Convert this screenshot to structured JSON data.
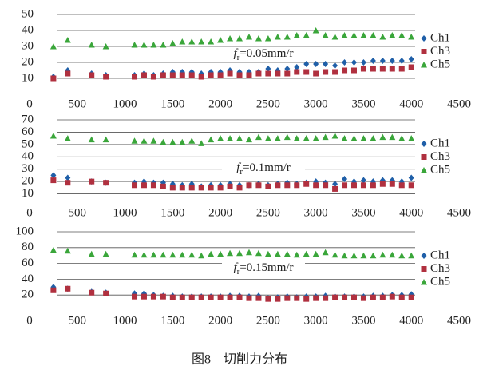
{
  "caption": "图8　切削力分布",
  "chart_data": [
    {
      "type": "scatter",
      "annotation": [
        "f",
        "r",
        "=0.05mm/r"
      ],
      "x": [
        250,
        400,
        650,
        800,
        1100,
        1200,
        1300,
        1400,
        1500,
        1600,
        1700,
        1800,
        1900,
        2000,
        2100,
        2200,
        2300,
        2400,
        2500,
        2600,
        2700,
        2800,
        2900,
        3000,
        3100,
        3200,
        3300,
        3400,
        3500,
        3600,
        3700,
        3800,
        3900,
        4000
      ],
      "xlim": [
        0,
        4500
      ],
      "xticks": [
        0,
        500,
        1000,
        1500,
        2000,
        2500,
        3000,
        3500,
        4000,
        4500
      ],
      "ylim": [
        0,
        50
      ],
      "yticks": [
        10,
        20,
        30,
        40,
        50
      ],
      "grid": true,
      "legend": "right",
      "series": [
        {
          "name": "Ch1",
          "color": "#1f5fa8",
          "marker": "diamond",
          "values": [
            11,
            15,
            13,
            12,
            12,
            13,
            12,
            13,
            14,
            14,
            14,
            13,
            14,
            14,
            15,
            14,
            14,
            14,
            16,
            15,
            16,
            17,
            19,
            19,
            19,
            18,
            20,
            20,
            20,
            21,
            21,
            21,
            21,
            22
          ]
        },
        {
          "name": "Ch3",
          "color": "#b0303f",
          "marker": "square",
          "values": [
            10,
            13,
            12,
            11,
            11,
            12,
            11,
            12,
            12,
            12,
            12,
            11,
            12,
            12,
            13,
            12,
            12,
            13,
            13,
            13,
            13,
            14,
            14,
            13,
            14,
            14,
            15,
            15,
            16,
            16,
            16,
            16,
            16,
            17
          ]
        },
        {
          "name": "Ch5",
          "color": "#3aa63a",
          "marker": "triangle",
          "values": [
            30,
            34,
            31,
            30,
            31,
            31,
            31,
            31,
            32,
            33,
            33,
            33,
            33,
            34,
            35,
            35,
            36,
            35,
            35,
            36,
            36,
            37,
            37,
            40,
            37,
            36,
            37,
            37,
            37,
            37,
            36,
            37,
            37,
            36
          ]
        }
      ]
    },
    {
      "type": "scatter",
      "annotation": [
        "f",
        "r",
        "=0.1mm/r"
      ],
      "x": [
        250,
        400,
        650,
        800,
        1100,
        1200,
        1300,
        1400,
        1500,
        1600,
        1700,
        1800,
        1900,
        2000,
        2100,
        2200,
        2300,
        2400,
        2500,
        2600,
        2700,
        2800,
        2900,
        3000,
        3100,
        3200,
        3300,
        3400,
        3500,
        3600,
        3700,
        3800,
        3900,
        4000
      ],
      "xlim": [
        0,
        4500
      ],
      "xticks": [
        0,
        500,
        1000,
        1500,
        2000,
        2500,
        3000,
        3500,
        4000,
        4500
      ],
      "ylim": [
        0,
        70
      ],
      "yticks": [
        10,
        20,
        30,
        40,
        50,
        60,
        70
      ],
      "grid": true,
      "legend": "right",
      "series": [
        {
          "name": "Ch1",
          "color": "#1f5fa8",
          "marker": "diamond",
          "values": [
            25,
            23,
            20,
            19,
            19,
            20,
            19,
            19,
            18,
            17,
            18,
            16,
            17,
            17,
            18,
            17,
            17,
            18,
            17,
            18,
            19,
            18,
            19,
            20,
            19,
            18,
            22,
            20,
            21,
            20,
            21,
            21,
            20,
            23
          ]
        },
        {
          "name": "Ch3",
          "color": "#b0303f",
          "marker": "square",
          "values": [
            21,
            19,
            20,
            19,
            17,
            17,
            17,
            16,
            15,
            15,
            15,
            15,
            15,
            15,
            16,
            15,
            17,
            17,
            16,
            17,
            17,
            17,
            18,
            17,
            17,
            14,
            17,
            17,
            17,
            17,
            18,
            18,
            17,
            17
          ]
        },
        {
          "name": "Ch5",
          "color": "#3aa63a",
          "marker": "triangle",
          "values": [
            57,
            55,
            54,
            54,
            53,
            53,
            53,
            52,
            52,
            52,
            53,
            51,
            54,
            55,
            55,
            55,
            54,
            56,
            55,
            55,
            56,
            55,
            55,
            55,
            56,
            57,
            55,
            55,
            55,
            55,
            56,
            56,
            55,
            55
          ]
        }
      ]
    },
    {
      "type": "scatter",
      "annotation": [
        "f",
        "r",
        "=0.15mm/r"
      ],
      "x": [
        250,
        400,
        650,
        800,
        1100,
        1200,
        1300,
        1400,
        1500,
        1600,
        1700,
        1800,
        1900,
        2000,
        2100,
        2200,
        2300,
        2400,
        2500,
        2600,
        2700,
        2800,
        2900,
        3000,
        3100,
        3200,
        3300,
        3400,
        3500,
        3600,
        3700,
        3800,
        3900,
        4000
      ],
      "xlim": [
        0,
        4500
      ],
      "xticks": [
        0,
        500,
        1000,
        1500,
        2000,
        2500,
        3000,
        3500,
        4000,
        4500
      ],
      "ylim": [
        0,
        100
      ],
      "yticks": [
        20,
        40,
        60,
        80,
        100
      ],
      "grid": true,
      "legend": "right",
      "series": [
        {
          "name": "Ch1",
          "color": "#1f5fa8",
          "marker": "diamond",
          "values": [
            30,
            28,
            24,
            23,
            22,
            22,
            20,
            19,
            19,
            18,
            18,
            18,
            18,
            18,
            19,
            19,
            18,
            19,
            16,
            17,
            18,
            17,
            18,
            18,
            19,
            18,
            18,
            18,
            18,
            19,
            19,
            20,
            20,
            21
          ]
        },
        {
          "name": "Ch3",
          "color": "#b0303f",
          "marker": "square",
          "values": [
            26,
            28,
            23,
            22,
            18,
            18,
            18,
            18,
            17,
            17,
            17,
            17,
            17,
            17,
            17,
            17,
            16,
            16,
            15,
            15,
            16,
            16,
            15,
            16,
            16,
            17,
            17,
            17,
            16,
            17,
            17,
            18,
            17,
            17
          ]
        },
        {
          "name": "Ch5",
          "color": "#3aa63a",
          "marker": "triangle",
          "values": [
            77,
            76,
            72,
            72,
            71,
            71,
            71,
            71,
            71,
            71,
            71,
            70,
            72,
            72,
            73,
            73,
            74,
            73,
            72,
            72,
            72,
            71,
            72,
            72,
            74,
            71,
            70,
            70,
            70,
            70,
            71,
            71,
            70,
            70
          ]
        }
      ]
    }
  ]
}
